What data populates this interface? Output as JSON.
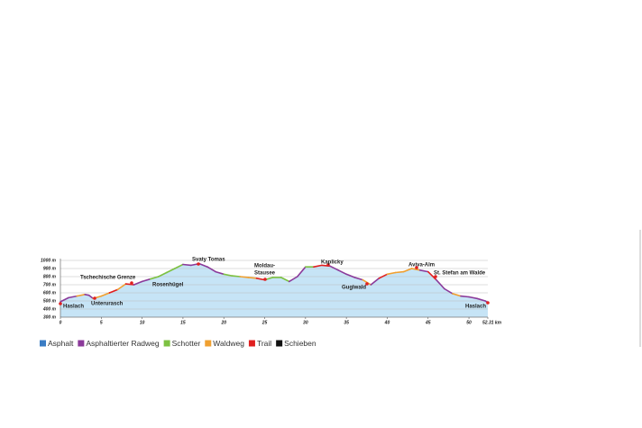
{
  "chart_data": {
    "type": "elevation",
    "x": [
      0,
      1,
      2,
      3,
      3.5,
      4,
      5,
      6,
      7,
      8,
      9,
      10,
      11,
      12,
      13,
      14,
      15,
      16,
      17,
      18,
      19,
      20,
      21,
      22,
      23,
      24,
      25,
      26,
      27,
      28,
      29,
      30,
      31,
      32,
      33,
      34,
      35,
      36,
      37,
      38,
      39,
      40,
      41,
      42,
      43,
      44,
      45,
      46,
      47,
      48,
      49,
      50,
      51,
      52,
      52.31
    ],
    "values": [
      490,
      540,
      560,
      580,
      570,
      530,
      560,
      600,
      640,
      710,
      700,
      740,
      770,
      800,
      850,
      900,
      950,
      940,
      960,
      920,
      860,
      830,
      810,
      800,
      790,
      780,
      760,
      790,
      790,
      740,
      800,
      920,
      920,
      940,
      930,
      880,
      830,
      790,
      760,
      700,
      780,
      830,
      850,
      860,
      900,
      880,
      860,
      760,
      650,
      590,
      560,
      550,
      530,
      500,
      480
    ],
    "surface": [
      1,
      1,
      3,
      1,
      1,
      3,
      3,
      4,
      3,
      4,
      1,
      1,
      2,
      2,
      2,
      2,
      1,
      1,
      1,
      1,
      1,
      2,
      2,
      3,
      3,
      4,
      2,
      2,
      2,
      1,
      1,
      2,
      4,
      4,
      1,
      1,
      1,
      1,
      3,
      1,
      4,
      3,
      3,
      3,
      3,
      1,
      4,
      1,
      1,
      3,
      1,
      1,
      1,
      1,
      null
    ],
    "legend": [
      {
        "name": "Asphalt",
        "color": "#3a7cc4"
      },
      {
        "name": "Asphaltierter Radweg",
        "color": "#8b3a9a"
      },
      {
        "name": "Schotter",
        "color": "#7dc142"
      },
      {
        "name": "Waldweg",
        "color": "#f0a030"
      },
      {
        "name": "Trail",
        "color": "#e02020"
      },
      {
        "name": "Schieben",
        "color": "#111111"
      }
    ],
    "fill_color": "#c6e4f6",
    "xlim": [
      0,
      52.31
    ],
    "xticks": [
      0,
      5,
      10,
      15,
      20,
      25,
      30,
      35,
      40,
      45,
      50,
      {
        "value": 52.31,
        "label": "52.31 km"
      }
    ],
    "ylim": [
      300,
      1000
    ],
    "yticks": [
      {
        "value": 300,
        "label": "300 m"
      },
      {
        "value": 400,
        "label": "400 m"
      },
      {
        "value": 500,
        "label": "500 m"
      },
      {
        "value": 600,
        "label": "600 m"
      },
      {
        "value": 700,
        "label": "700 m"
      },
      {
        "value": 800,
        "label": "800 m"
      },
      {
        "value": 900,
        "label": "900 m"
      },
      {
        "value": 1000,
        "label": "1000 m"
      }
    ],
    "grid": true,
    "annotations": [
      "Haslach",
      "Unterurasch",
      "Tschechische Grenze",
      "Rosenhügel",
      "Svaty Tomas",
      "Moldau-",
      "Stausee",
      "Kaplicky",
      "Guglwald",
      "Aviva-Alm",
      "St. Stefan am Walde",
      "Haslach"
    ]
  }
}
